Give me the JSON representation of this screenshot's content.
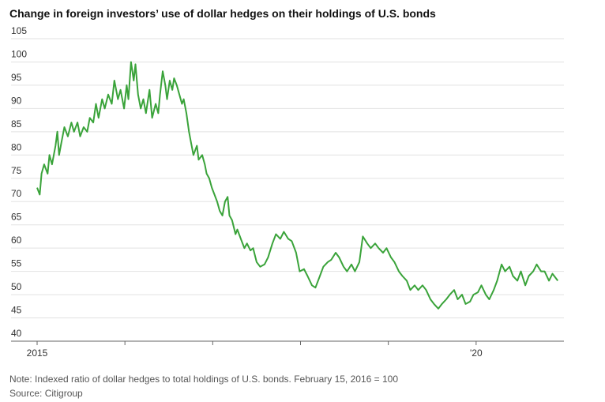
{
  "chart_data": {
    "type": "line",
    "title": "Change in foreign investors’ use of dollar hedges on their holdings of U.S. bonds",
    "note": "Note: Indexed ratio of dollar hedges to total holdings of U.S. bonds. February 15, 2016 = 100",
    "source": "Source: Citigroup",
    "x": [
      2015.0,
      2015.03,
      2015.05,
      2015.08,
      2015.12,
      2015.14,
      2015.17,
      2015.21,
      2015.23,
      2015.25,
      2015.28,
      2015.31,
      2015.35,
      2015.39,
      2015.42,
      2015.46,
      2015.49,
      2015.53,
      2015.57,
      2015.6,
      2015.64,
      2015.67,
      2015.7,
      2015.74,
      2015.77,
      2015.81,
      2015.85,
      2015.88,
      2015.92,
      2015.95,
      2015.99,
      2016.02,
      2016.04,
      2016.07,
      2016.1,
      2016.12,
      2016.15,
      2016.18,
      2016.21,
      2016.24,
      2016.28,
      2016.31,
      2016.35,
      2016.38,
      2016.4,
      2016.43,
      2016.46,
      2016.48,
      2016.51,
      2016.54,
      2016.56,
      2016.59,
      2016.62,
      2016.65,
      2016.67,
      2016.7,
      2016.73,
      2016.75,
      2016.78,
      2016.82,
      2016.84,
      2016.88,
      2016.91,
      2016.93,
      2016.96,
      2016.99,
      2017.01,
      2017.05,
      2017.08,
      2017.11,
      2017.14,
      2017.17,
      2017.19,
      2017.22,
      2017.26,
      2017.28,
      2017.32,
      2017.36,
      2017.39,
      2017.43,
      2017.46,
      2017.5,
      2017.54,
      2017.59,
      2017.63,
      2017.68,
      2017.72,
      2017.77,
      2017.81,
      2017.86,
      2017.9,
      2017.95,
      2017.99,
      2018.04,
      2018.08,
      2018.13,
      2018.17,
      2018.22,
      2018.26,
      2018.31,
      2018.35,
      2018.4,
      2018.44,
      2018.49,
      2018.53,
      2018.58,
      2018.62,
      2018.67,
      2018.71,
      2018.76,
      2018.8,
      2018.85,
      2018.89,
      2018.94,
      2018.98,
      2019.03,
      2019.07,
      2019.12,
      2019.16,
      2019.21,
      2019.25,
      2019.3,
      2019.34,
      2019.39,
      2019.43,
      2019.48,
      2019.52,
      2019.57,
      2019.61,
      2019.66,
      2019.7,
      2019.75,
      2019.79,
      2019.84,
      2019.88,
      2019.93,
      2019.97,
      2020.02,
      2020.06,
      2020.11,
      2020.15,
      2020.2,
      2020.24,
      2020.29,
      2020.33,
      2020.38,
      2020.42,
      2020.47,
      2020.51,
      2020.56,
      2020.6,
      2020.65,
      2020.69,
      2020.74,
      2020.78,
      2020.83,
      2020.87,
      2020.93
    ],
    "series": [
      {
        "color": "#3aa33a",
        "values": [
          73,
          71.5,
          76,
          78,
          76,
          80,
          78,
          82,
          85,
          80,
          83,
          86,
          84,
          87,
          85,
          87,
          84,
          86,
          85,
          88,
          87,
          91,
          88,
          92,
          90,
          93,
          91,
          96,
          92,
          94,
          90,
          95,
          92,
          100,
          96,
          99.5,
          93,
          90,
          92,
          89,
          94,
          88,
          91,
          89,
          93,
          98,
          95,
          92,
          96,
          94,
          96.5,
          95,
          93,
          91,
          92,
          89,
          85,
          83,
          80,
          82,
          79,
          80,
          78,
          76,
          75,
          73,
          72,
          70,
          68,
          67,
          70,
          71,
          67,
          66,
          63,
          64,
          62,
          60,
          61,
          59.5,
          60,
          57,
          56,
          56.5,
          58,
          61,
          63,
          62,
          63.5,
          62,
          61.5,
          59,
          55,
          55.5,
          54,
          52,
          51.5,
          54,
          56,
          57,
          57.5,
          59,
          58,
          56,
          55,
          56.5,
          55,
          57,
          62.5,
          61,
          60,
          61,
          60,
          59,
          60,
          58,
          57,
          55,
          54,
          53,
          51,
          52,
          51,
          52,
          51,
          49,
          48,
          47,
          48,
          49,
          50,
          51,
          49,
          50,
          48,
          48.5,
          50,
          50.5,
          52,
          50,
          49,
          51,
          53,
          56.5,
          55,
          56,
          54,
          53,
          55,
          52,
          54,
          55,
          56.5,
          55,
          55,
          53,
          54.5,
          53
        ]
      }
    ],
    "xlim": [
      2015,
      2021
    ],
    "xticks": [
      2015,
      {
        "value": 2016,
        "label": null
      },
      {
        "value": 2017,
        "label": null
      },
      {
        "value": 2018,
        "label": null
      },
      {
        "value": 2019,
        "label": null
      },
      {
        "value": 2020,
        "label": "'20"
      }
    ],
    "ylim": [
      40,
      105
    ],
    "yticks": [
      40,
      45,
      50,
      55,
      60,
      65,
      70,
      75,
      80,
      85,
      90,
      95,
      100,
      105
    ],
    "grid": true
  }
}
